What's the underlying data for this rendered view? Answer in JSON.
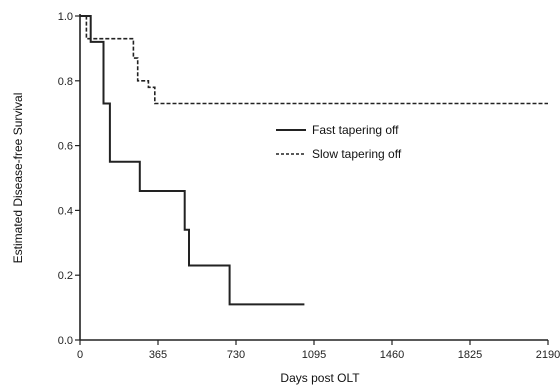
{
  "chart_data": {
    "type": "line",
    "title": "",
    "xlabel": "Days post OLT",
    "ylabel": "Estimated Disease-free Survival",
    "x_ticks": [
      0,
      365,
      730,
      1095,
      1460,
      1825,
      2190
    ],
    "x_tick_labels": [
      "0",
      "365",
      "730",
      "1095",
      "1460",
      "1825",
      "2190"
    ],
    "y_ticks": [
      0,
      0.2,
      0.4,
      0.6,
      0.8,
      1.0
    ],
    "y_tick_labels": [
      "0.0",
      "0.2",
      "0.4",
      "0.6",
      "0.8",
      "1.0"
    ],
    "xlim": [
      0,
      2190
    ],
    "ylim": [
      0,
      1.0
    ],
    "grid": false,
    "legend_position": "upper-right",
    "series": [
      {
        "name": "Fast tapering off",
        "style": "solid",
        "color": "#222222",
        "x": [
          0,
          50,
          50,
          110,
          110,
          140,
          140,
          280,
          280,
          490,
          490,
          510,
          510,
          700,
          700,
          1050
        ],
        "y": [
          1.0,
          1.0,
          0.92,
          0.92,
          0.73,
          0.73,
          0.55,
          0.55,
          0.46,
          0.46,
          0.34,
          0.34,
          0.23,
          0.23,
          0.11,
          0.11
        ]
      },
      {
        "name": "Slow tapering off",
        "style": "dashed",
        "color": "#222222",
        "x": [
          0,
          30,
          30,
          250,
          250,
          270,
          270,
          320,
          320,
          350,
          350,
          2190
        ],
        "y": [
          1.0,
          1.0,
          0.93,
          0.93,
          0.87,
          0.87,
          0.8,
          0.8,
          0.78,
          0.78,
          0.73,
          0.73
        ]
      }
    ]
  }
}
